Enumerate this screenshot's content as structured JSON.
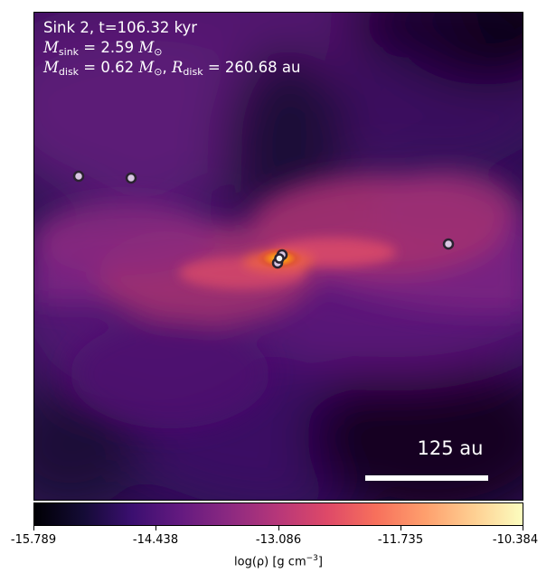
{
  "figure": {
    "title_line": "Sink 2, t=106.32 kyr",
    "mass_line": {
      "m_symbol": "M",
      "m_sub": "sink",
      "m_value": "= 2.59",
      "m_unit": "M",
      "m_unit_sub": "⊙"
    },
    "disk_line": {
      "m_symbol": "M",
      "m_sub": "disk",
      "m_value": "= 0.62",
      "m_unit": "M",
      "m_unit_sub": "⊙",
      "sep": ", ",
      "r_symbol": "R",
      "r_sub": "disk",
      "r_value": "= 260.68 au"
    },
    "scalebar_label": "125 au",
    "colorbar": {
      "ticks": [
        "-15.789",
        "-14.438",
        "-13.086",
        "-11.735",
        "-10.384"
      ],
      "label_prefix": "log(ρ) [g cm",
      "label_sup": "−3",
      "label_suffix": "]",
      "colormap": "inferno"
    }
  }
}
